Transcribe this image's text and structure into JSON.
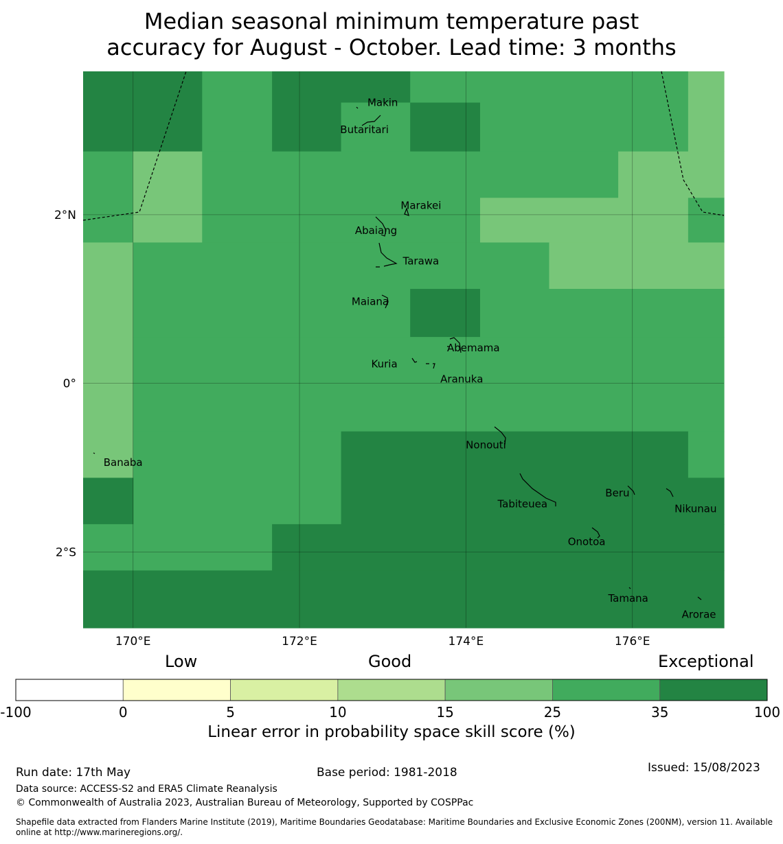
{
  "title": {
    "line1": "Median seasonal minimum temperature past",
    "line2": "accuracy for August - October. Lead time: 3 months"
  },
  "map": {
    "lon_range": [
      169.4,
      177.1
    ],
    "lat_range": [
      -2.9,
      3.7
    ],
    "x_ticks": [
      {
        "lon": 170,
        "label": "170°E"
      },
      {
        "lon": 172,
        "label": "172°E"
      },
      {
        "lon": 174,
        "label": "174°E"
      },
      {
        "lon": 176,
        "label": "176°E"
      }
    ],
    "y_ticks": [
      {
        "lat": 2,
        "label": "2°N"
      },
      {
        "lat": 0,
        "label": "0°"
      },
      {
        "lat": -2,
        "label": "2°S"
      }
    ],
    "grid_cells": [
      {
        "lon0": 169.4,
        "lon1": 170.83,
        "lat0": 2.75,
        "lat1": 3.7,
        "category": 6
      },
      {
        "lon0": 170.83,
        "lon1": 171.67,
        "lat0": 2.75,
        "lat1": 3.7,
        "category": 5
      },
      {
        "lon0": 171.67,
        "lon1": 172.5,
        "lat0": 2.75,
        "lat1": 3.7,
        "category": 6
      },
      {
        "lon0": 172.5,
        "lon1": 173.33,
        "lat0": 3.33,
        "lat1": 3.7,
        "category": 6
      },
      {
        "lon0": 172.5,
        "lon1": 173.33,
        "lat0": 2.75,
        "lat1": 3.33,
        "category": 5
      },
      {
        "lon0": 173.33,
        "lon1": 174.17,
        "lat0": 3.33,
        "lat1": 3.7,
        "category": 5
      },
      {
        "lon0": 173.33,
        "lon1": 174.17,
        "lat0": 2.75,
        "lat1": 3.33,
        "category": 6
      },
      {
        "lon0": 174.17,
        "lon1": 176.67,
        "lat0": 2.75,
        "lat1": 3.7,
        "category": 5
      },
      {
        "lon0": 176.67,
        "lon1": 177.1,
        "lat0": 2.75,
        "lat1": 3.7,
        "category": 4
      },
      {
        "lon0": 169.4,
        "lon1": 170.0,
        "lat0": 1.67,
        "lat1": 2.75,
        "category": 5
      },
      {
        "lon0": 170.0,
        "lon1": 170.83,
        "lat0": 1.67,
        "lat1": 2.75,
        "category": 4
      },
      {
        "lon0": 170.83,
        "lon1": 174.17,
        "lat0": 1.67,
        "lat1": 2.75,
        "category": 5
      },
      {
        "lon0": 174.17,
        "lon1": 175.83,
        "lat0": 2.2,
        "lat1": 2.75,
        "category": 5
      },
      {
        "lon0": 174.17,
        "lon1": 175.83,
        "lat0": 1.67,
        "lat1": 2.2,
        "category": 4
      },
      {
        "lon0": 175.83,
        "lon1": 176.67,
        "lat0": 2.2,
        "lat1": 2.75,
        "category": 4
      },
      {
        "lon0": 175.83,
        "lon1": 176.67,
        "lat0": 1.67,
        "lat1": 2.2,
        "category": 4
      },
      {
        "lon0": 176.67,
        "lon1": 177.1,
        "lat0": 2.2,
        "lat1": 2.75,
        "category": 4
      },
      {
        "lon0": 176.67,
        "lon1": 177.1,
        "lat0": 1.67,
        "lat1": 2.2,
        "category": 5
      },
      {
        "lon0": 169.4,
        "lon1": 170.0,
        "lat0": -1.12,
        "lat1": 1.67,
        "category": 4
      },
      {
        "lon0": 170.0,
        "lon1": 175.0,
        "lat0": 1.12,
        "lat1": 1.67,
        "category": 5
      },
      {
        "lon0": 175.0,
        "lon1": 177.1,
        "lat0": 1.12,
        "lat1": 1.67,
        "category": 4
      },
      {
        "lon0": 170.0,
        "lon1": 173.33,
        "lat0": 0.55,
        "lat1": 1.12,
        "category": 5
      },
      {
        "lon0": 173.33,
        "lon1": 174.17,
        "lat0": 0.55,
        "lat1": 1.12,
        "category": 6
      },
      {
        "lon0": 174.17,
        "lon1": 177.1,
        "lat0": 0.55,
        "lat1": 1.12,
        "category": 5
      },
      {
        "lon0": 170.0,
        "lon1": 177.1,
        "lat0": -0.57,
        "lat1": 0.55,
        "category": 5
      },
      {
        "lon0": 170.0,
        "lon1": 172.5,
        "lat0": -1.67,
        "lat1": -0.57,
        "category": 5
      },
      {
        "lon0": 172.5,
        "lon1": 176.67,
        "lat0": -1.12,
        "lat1": -0.57,
        "category": 6
      },
      {
        "lon0": 176.67,
        "lon1": 177.1,
        "lat0": -1.12,
        "lat1": -0.57,
        "category": 5
      },
      {
        "lon0": 169.4,
        "lon1": 170.0,
        "lat0": -1.67,
        "lat1": -1.12,
        "category": 6
      },
      {
        "lon0": 172.5,
        "lon1": 177.1,
        "lat0": -1.67,
        "lat1": -1.12,
        "category": 6
      },
      {
        "lon0": 169.4,
        "lon1": 171.67,
        "lat0": -2.22,
        "lat1": -1.67,
        "category": 5
      },
      {
        "lon0": 171.67,
        "lon1": 177.1,
        "lat0": -2.22,
        "lat1": -1.67,
        "category": 6
      },
      {
        "lon0": 169.4,
        "lon1": 177.1,
        "lat0": -2.9,
        "lat1": -2.22,
        "category": 6
      }
    ],
    "places": [
      {
        "name": "Makin",
        "lon": 173.0,
        "lat": 3.33
      },
      {
        "name": "Butaritari",
        "lon": 172.78,
        "lat": 3.01
      },
      {
        "name": "Marakei",
        "lon": 173.46,
        "lat": 2.11
      },
      {
        "name": "Abaiang",
        "lon": 172.92,
        "lat": 1.81
      },
      {
        "name": "Tarawa",
        "lon": 173.46,
        "lat": 1.45
      },
      {
        "name": "Maiana",
        "lon": 172.85,
        "lat": 0.97
      },
      {
        "name": "Abemama",
        "lon": 174.09,
        "lat": 0.42
      },
      {
        "name": "Kuria",
        "lon": 173.02,
        "lat": 0.23
      },
      {
        "name": "Aranuka",
        "lon": 173.95,
        "lat": 0.05
      },
      {
        "name": "Nonouti",
        "lon": 174.24,
        "lat": -0.73
      },
      {
        "name": "Banaba",
        "lon": 169.88,
        "lat": -0.94
      },
      {
        "name": "Tabiteuea",
        "lon": 174.68,
        "lat": -1.43
      },
      {
        "name": "Beru",
        "lon": 175.82,
        "lat": -1.3
      },
      {
        "name": "Nikunau",
        "lon": 176.76,
        "lat": -1.49
      },
      {
        "name": "Onotoa",
        "lon": 175.45,
        "lat": -1.88
      },
      {
        "name": "Tamana",
        "lon": 175.95,
        "lat": -2.55
      },
      {
        "name": "Arorae",
        "lon": 176.8,
        "lat": -2.74
      }
    ]
  },
  "colorbar": {
    "boundaries": [
      "-100",
      "0",
      "5",
      "10",
      "15",
      "25",
      "35",
      "100"
    ],
    "colors": [
      "#ffffff",
      "#ffffcc",
      "#d9f0a3",
      "#addd8e",
      "#78c679",
      "#41ab5d",
      "#238443"
    ],
    "category_words": {
      "low": "Low",
      "good": "Good",
      "exceptional": "Exceptional"
    },
    "label": "Linear error in probability space skill score (%)"
  },
  "footer": {
    "run_date": "Run date: 17th May",
    "base_period": "Base period: 1981-2018",
    "issued": "Issued: 15/08/2023",
    "data_source": "Data source: ACCESS-S2 and ERA5 Climate Reanalysis",
    "copyright": "© Commonwealth of Australia 2023, Australian Bureau of Meteorology, Supported by COSPPac",
    "shapefile": "Shapefile data extracted from Flanders Marine Institute (2019), Maritime Boundaries Geodatabase: Maritime Boundaries and Exclusive Economic Zones (200NM), version 11. Available online at http://www.marineregions.org/."
  }
}
